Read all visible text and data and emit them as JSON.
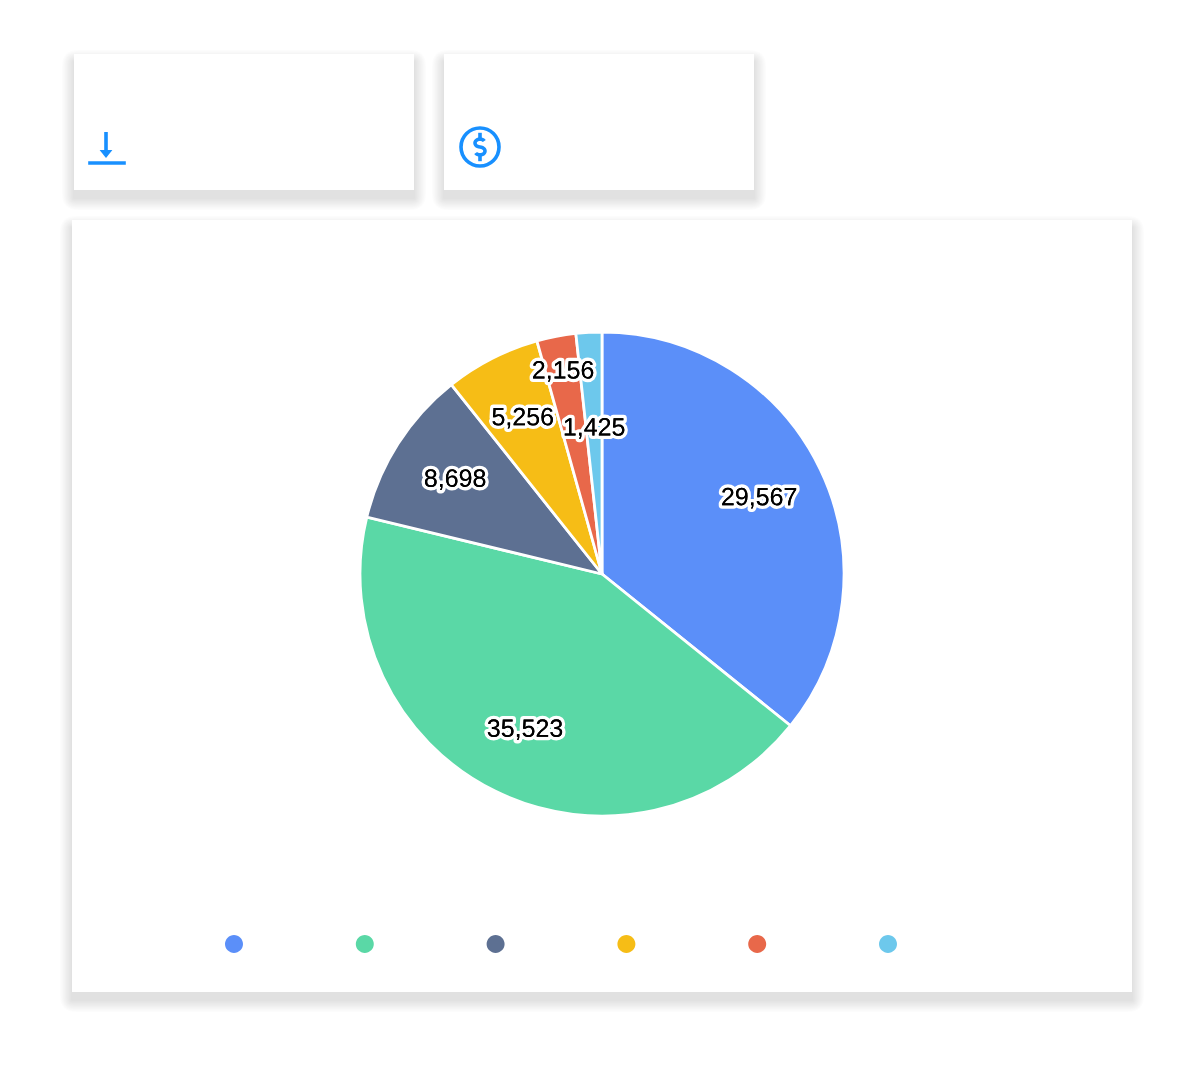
{
  "chart_data": {
    "type": "pie",
    "categories": [
      null,
      null,
      null,
      null,
      null,
      null
    ],
    "values": [
      29567,
      35523,
      8698,
      5256,
      2156,
      1425
    ],
    "colors": [
      "#5b8ff9",
      "#5ad8a6",
      "#5d7092",
      "#f6bd16",
      "#e8684a",
      "#6dc8ec"
    ],
    "value_labels": [
      "29,567",
      "35,523",
      "8,698",
      "5,256",
      "2,156",
      "1,425"
    ]
  }
}
